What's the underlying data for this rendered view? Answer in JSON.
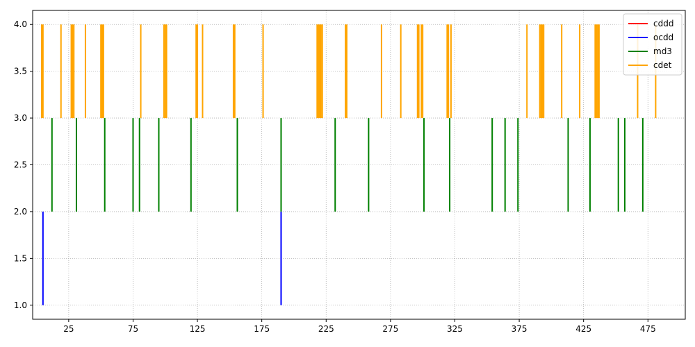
{
  "chart_data": {
    "type": "event-plot",
    "title": "",
    "xlabel": "",
    "ylabel": "",
    "xlim": [
      -3,
      504
    ],
    "ylim": [
      0.85,
      4.15
    ],
    "x_ticks": [
      25,
      75,
      125,
      175,
      225,
      275,
      325,
      375,
      425,
      475
    ],
    "y_ticks": [
      1.0,
      1.5,
      2.0,
      2.5,
      3.0,
      3.5,
      4.0
    ],
    "y_tick_labels": [
      "1.0",
      "1.5",
      "2.0",
      "2.5",
      "3.0",
      "3.5",
      "4.0"
    ],
    "grid": true,
    "legend_position": "top-right",
    "series": [
      {
        "name": "cddd",
        "color": "#ff0000",
        "y_range": [
          0,
          1
        ],
        "events": []
      },
      {
        "name": "ocdd",
        "color": "#0000ff",
        "y_range": [
          1,
          2
        ],
        "events": [
          5,
          190
        ]
      },
      {
        "name": "md3",
        "color": "#008000",
        "y_range": [
          2,
          3
        ],
        "events": [
          12,
          31,
          53,
          75,
          80,
          95,
          120,
          156,
          190,
          232,
          258,
          301,
          321,
          354,
          364,
          374,
          413,
          430,
          452,
          457,
          471
        ]
      },
      {
        "name": "cdet",
        "color": "#ffa500",
        "y_range": [
          3,
          4
        ],
        "events": [
          4,
          5,
          19,
          27,
          28,
          29,
          38,
          50,
          51,
          52,
          81,
          99,
          100,
          101,
          124,
          125,
          129,
          153,
          154,
          176,
          218,
          219,
          220,
          221,
          222,
          240,
          241,
          268,
          283,
          296,
          297,
          299,
          300,
          319,
          320,
          322,
          381,
          391,
          392,
          393,
          394,
          408,
          422,
          434,
          435,
          436,
          437,
          467,
          481
        ]
      }
    ]
  }
}
